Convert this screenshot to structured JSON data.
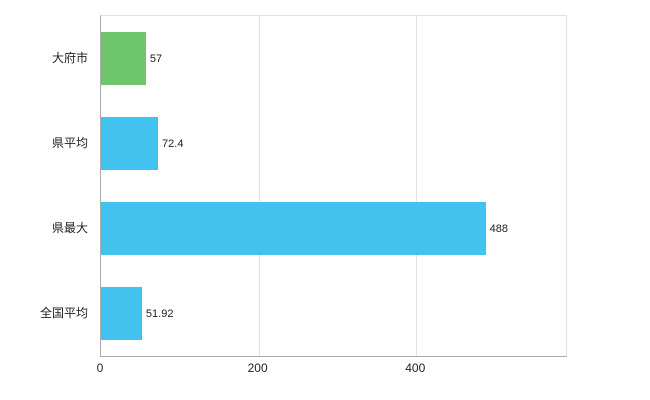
{
  "chart_data": {
    "type": "bar",
    "orientation": "horizontal",
    "categories": [
      "大府市",
      "県平均",
      "県最大",
      "全国平均"
    ],
    "values": [
      57,
      72.4,
      488,
      51.92
    ],
    "value_labels": [
      "57",
      "72.4",
      "488",
      "51.92"
    ],
    "bar_colors": [
      "#6dc66b",
      "#41c2ef",
      "#41c2ef",
      "#41c2ef"
    ],
    "xticks": [
      0,
      200,
      400
    ],
    "xtick_labels": [
      "0",
      "200",
      "400"
    ],
    "xlim": [
      0,
      590
    ],
    "grid": true,
    "legend": false,
    "accent_blue": "#41c2ef",
    "accent_green": "#6dc66b",
    "axis_color": "#ababab",
    "grid_color": "#e2e2e2",
    "text_color": "#222222"
  }
}
